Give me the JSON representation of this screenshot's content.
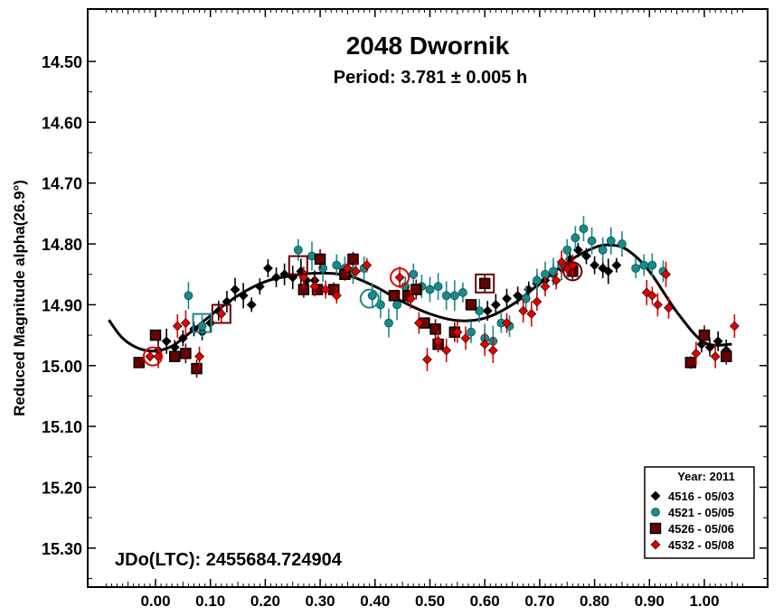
{
  "chart_data": {
    "type": "scatter",
    "title": "2048 Dwornik",
    "subtitle": "Period: 3.781 ± 0.005 h",
    "ylabel": "Reduced Magnitude alpha(26.9°)",
    "xlabel": "",
    "annotation": "JDo(LTC): 2455684.724904",
    "xlim": [
      -0.1,
      1.08
    ],
    "ylim": [
      15.38,
      14.4
    ],
    "y_inverted": true,
    "xticks": [
      0.0,
      0.1,
      0.2,
      0.3,
      0.4,
      0.5,
      0.6,
      0.7,
      0.8,
      0.9,
      1.0
    ],
    "xtick_labels": [
      "0.00",
      "0.10",
      "0.20",
      "0.30",
      "0.40",
      "0.50",
      "0.60",
      "0.70",
      "0.80",
      "0.90",
      "1.00"
    ],
    "yticks": [
      14.5,
      14.6,
      14.7,
      14.8,
      14.9,
      15.0,
      15.1,
      15.2,
      15.3
    ],
    "ytick_labels": [
      "14.50",
      "14.60",
      "14.70",
      "14.80",
      "14.90",
      "15.00",
      "15.10",
      "15.20",
      "15.30"
    ],
    "grid": false,
    "legend": {
      "title": "Year: 2011",
      "placement": "bottom-right",
      "entries": [
        "4516 - 05/03",
        "4521 - 05/05",
        "4526 - 05/06",
        "4532 - 05/08"
      ]
    },
    "series": [
      {
        "name": "4516 - 05/03",
        "marker": "diamond",
        "color": "#000000",
        "points": [
          [
            0.005,
            14.975
          ],
          [
            0.02,
            14.96
          ],
          [
            0.035,
            14.97
          ],
          [
            0.05,
            14.955
          ],
          [
            0.07,
            14.94
          ],
          [
            0.085,
            14.945
          ],
          [
            0.1,
            14.93
          ],
          [
            0.115,
            14.91
          ],
          [
            0.13,
            14.895
          ],
          [
            0.145,
            14.875
          ],
          [
            0.16,
            14.885
          ],
          [
            0.175,
            14.9
          ],
          [
            0.19,
            14.87
          ],
          [
            0.205,
            14.84
          ],
          [
            0.22,
            14.855
          ],
          [
            0.235,
            14.85
          ],
          [
            0.25,
            14.855
          ],
          [
            0.265,
            14.845
          ],
          [
            0.275,
            14.86
          ],
          [
            0.29,
            14.86
          ],
          [
            0.605,
            14.91
          ],
          [
            0.62,
            14.9
          ],
          [
            0.64,
            14.89
          ],
          [
            0.66,
            14.885
          ],
          [
            0.68,
            14.875
          ],
          [
            0.695,
            14.865
          ],
          [
            0.71,
            14.86
          ],
          [
            0.725,
            14.85
          ],
          [
            0.74,
            14.84
          ],
          [
            0.755,
            14.825
          ],
          [
            0.77,
            14.81
          ],
          [
            0.785,
            14.82
          ],
          [
            0.8,
            14.835
          ],
          [
            0.815,
            14.84
          ],
          [
            0.825,
            14.845
          ],
          [
            0.84,
            14.835
          ],
          [
            0.995,
            14.965
          ],
          [
            1.01,
            14.97
          ],
          [
            1.025,
            14.96
          ],
          [
            1.04,
            14.975
          ]
        ]
      },
      {
        "name": "4521 - 05/05",
        "marker": "circle",
        "color": "#1a8a8a",
        "points": [
          [
            0.06,
            14.885
          ],
          [
            0.085,
            14.935
          ],
          [
            0.26,
            14.81
          ],
          [
            0.285,
            14.82
          ],
          [
            0.305,
            14.84
          ],
          [
            0.33,
            14.835
          ],
          [
            0.345,
            14.84
          ],
          [
            0.36,
            14.845
          ],
          [
            0.38,
            14.84
          ],
          [
            0.395,
            14.885
          ],
          [
            0.41,
            14.9
          ],
          [
            0.425,
            14.93
          ],
          [
            0.44,
            14.9
          ],
          [
            0.455,
            14.87
          ],
          [
            0.47,
            14.85
          ],
          [
            0.485,
            14.87
          ],
          [
            0.5,
            14.875
          ],
          [
            0.515,
            14.87
          ],
          [
            0.53,
            14.885
          ],
          [
            0.545,
            14.885
          ],
          [
            0.56,
            14.88
          ],
          [
            0.575,
            14.945
          ],
          [
            0.59,
            14.91
          ],
          [
            0.6,
            14.955
          ],
          [
            0.615,
            14.96
          ],
          [
            0.63,
            14.93
          ],
          [
            0.645,
            14.935
          ],
          [
            0.675,
            14.89
          ],
          [
            0.695,
            14.86
          ],
          [
            0.71,
            14.85
          ],
          [
            0.725,
            14.845
          ],
          [
            0.74,
            14.835
          ],
          [
            0.75,
            14.81
          ],
          [
            0.765,
            14.79
          ],
          [
            0.78,
            14.775
          ],
          [
            0.795,
            14.795
          ],
          [
            0.815,
            14.81
          ],
          [
            0.83,
            14.795
          ],
          [
            0.85,
            14.8
          ],
          [
            0.875,
            14.84
          ],
          [
            0.89,
            14.835
          ],
          [
            0.905,
            14.835
          ],
          [
            0.925,
            14.845
          ]
        ]
      },
      {
        "name": "4526 - 05/06",
        "marker": "square",
        "color": "#6b0000",
        "points": [
          [
            -0.03,
            14.995
          ],
          [
            0.0,
            14.95
          ],
          [
            0.035,
            14.985
          ],
          [
            0.055,
            14.98
          ],
          [
            0.075,
            15.005
          ],
          [
            0.27,
            14.875
          ],
          [
            0.295,
            14.875
          ],
          [
            0.3,
            14.825
          ],
          [
            0.325,
            14.875
          ],
          [
            0.345,
            14.85
          ],
          [
            0.36,
            14.825
          ],
          [
            0.435,
            14.885
          ],
          [
            0.46,
            14.885
          ],
          [
            0.475,
            14.875
          ],
          [
            0.49,
            14.93
          ],
          [
            0.51,
            14.94
          ],
          [
            0.515,
            14.965
          ],
          [
            0.545,
            14.945
          ],
          [
            0.575,
            14.9
          ],
          [
            0.6,
            14.865
          ],
          [
            0.76,
            14.845
          ],
          [
            0.975,
            14.995
          ],
          [
            1.0,
            14.95
          ],
          [
            1.04,
            14.985
          ]
        ]
      },
      {
        "name": "4532 - 05/08",
        "marker": "diamond",
        "color": "#e00000",
        "points": [
          [
            -0.01,
            14.985
          ],
          [
            0.005,
            14.985
          ],
          [
            0.04,
            14.935
          ],
          [
            0.055,
            14.93
          ],
          [
            0.08,
            14.985
          ],
          [
            0.12,
            14.915
          ],
          [
            0.27,
            14.855
          ],
          [
            0.29,
            14.87
          ],
          [
            0.31,
            14.875
          ],
          [
            0.33,
            14.885
          ],
          [
            0.35,
            14.84
          ],
          [
            0.365,
            14.845
          ],
          [
            0.385,
            14.835
          ],
          [
            0.445,
            14.855
          ],
          [
            0.465,
            14.89
          ],
          [
            0.48,
            14.93
          ],
          [
            0.495,
            14.99
          ],
          [
            0.515,
            14.96
          ],
          [
            0.53,
            14.975
          ],
          [
            0.55,
            14.945
          ],
          [
            0.565,
            14.955
          ],
          [
            0.6,
            14.965
          ],
          [
            0.615,
            14.975
          ],
          [
            0.64,
            14.93
          ],
          [
            0.67,
            14.91
          ],
          [
            0.685,
            14.915
          ],
          [
            0.695,
            14.895
          ],
          [
            0.71,
            14.87
          ],
          [
            0.73,
            14.86
          ],
          [
            0.74,
            14.83
          ],
          [
            0.75,
            14.84
          ],
          [
            0.76,
            14.835
          ],
          [
            0.895,
            14.88
          ],
          [
            0.905,
            14.885
          ],
          [
            0.915,
            14.9
          ],
          [
            0.93,
            14.85
          ],
          [
            0.935,
            14.905
          ],
          [
            0.985,
            14.98
          ],
          [
            1.02,
            14.985
          ],
          [
            1.055,
            14.935
          ]
        ]
      }
    ],
    "highlighted_points": [
      {
        "series": "4526 - 05/06",
        "marker": "open-square",
        "x": 0.12,
        "y": 14.915
      },
      {
        "series": "4521 - 05/05",
        "marker": "open-square",
        "x": 0.085,
        "y": 14.93
      },
      {
        "series": "4526 - 05/06",
        "marker": "open-square",
        "x": 0.26,
        "y": 14.835
      },
      {
        "series": "4526 - 05/06",
        "marker": "open-square",
        "x": 0.6,
        "y": 14.865
      },
      {
        "series": "4521 - 05/05",
        "marker": "open-circle",
        "x": 0.39,
        "y": 14.89
      },
      {
        "series": "4532 - 05/08",
        "marker": "open-circle",
        "x": 0.445,
        "y": 14.855
      },
      {
        "series": "4526 - 05/06",
        "marker": "open-circle",
        "x": 0.76,
        "y": 14.845
      },
      {
        "series": "4532 - 05/08",
        "marker": "open-circle",
        "x": -0.005,
        "y": 14.985
      }
    ],
    "fit_curve": {
      "color": "#000000",
      "points": [
        [
          -0.085,
          14.925
        ],
        [
          -0.06,
          14.955
        ],
        [
          -0.03,
          14.972
        ],
        [
          0.0,
          14.976
        ],
        [
          0.03,
          14.968
        ],
        [
          0.06,
          14.948
        ],
        [
          0.1,
          14.918
        ],
        [
          0.15,
          14.885
        ],
        [
          0.2,
          14.862
        ],
        [
          0.25,
          14.852
        ],
        [
          0.3,
          14.848
        ],
        [
          0.35,
          14.852
        ],
        [
          0.4,
          14.87
        ],
        [
          0.45,
          14.895
        ],
        [
          0.5,
          14.915
        ],
        [
          0.55,
          14.926
        ],
        [
          0.6,
          14.922
        ],
        [
          0.65,
          14.9
        ],
        [
          0.7,
          14.865
        ],
        [
          0.75,
          14.83
        ],
        [
          0.8,
          14.806
        ],
        [
          0.83,
          14.802
        ],
        [
          0.86,
          14.81
        ],
        [
          0.9,
          14.845
        ],
        [
          0.95,
          14.912
        ],
        [
          1.0,
          14.962
        ],
        [
          1.05,
          14.965
        ]
      ]
    }
  }
}
